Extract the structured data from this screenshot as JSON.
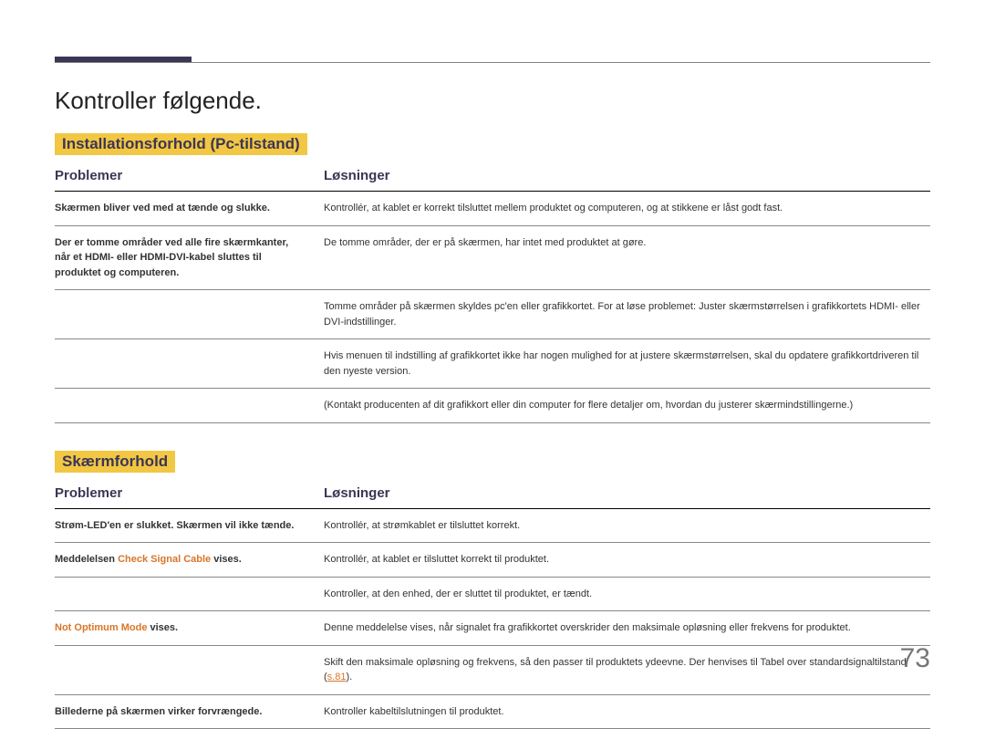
{
  "page": {
    "number": "73",
    "title": "Kontroller følgende."
  },
  "colors": {
    "topbar": "#3b3654",
    "highlight_bg": "#f2c744",
    "heading_text": "#3b3654",
    "orange": "#d97528"
  },
  "sections": [
    {
      "heading": "Installationsforhold (Pc-tilstand)",
      "columns": {
        "problem": "Problemer",
        "solution": "Løsninger"
      },
      "rows": [
        {
          "problem": "Skærmen bliver ved med at tænde og slukke.",
          "solutions": [
            "Kontrollér, at kablet er korrekt tilsluttet mellem produktet og computeren, og at stikkene er låst godt fast."
          ]
        },
        {
          "problem": "Der er tomme områder ved alle fire skærmkanter, når et HDMI- eller HDMI-DVI-kabel sluttes til produktet og computeren.",
          "solutions": [
            "De tomme områder, der er på skærmen, har intet med produktet at gøre.",
            "Tomme områder på skærmen skyldes pc'en eller grafikkortet. For at løse problemet: Juster skærmstørrelsen i grafikkortets HDMI- eller DVI-indstillinger.",
            "Hvis menuen til indstilling af grafikkortet ikke har nogen mulighed for at justere skærmstørrelsen, skal du opdatere grafikkortdriveren til den nyeste version.",
            "(Kontakt producenten af dit grafikkort eller din computer for flere detaljer om, hvordan du justerer skærmindstillingerne.)"
          ]
        }
      ]
    },
    {
      "heading": "Skærmforhold",
      "columns": {
        "problem": "Problemer",
        "solution": "Løsninger"
      },
      "rows": [
        {
          "problem": "Strøm-LED'en er slukket. Skærmen vil ikke tænde.",
          "solutions": [
            "Kontrollér, at strømkablet er tilsluttet korrekt."
          ]
        },
        {
          "problem_parts": [
            {
              "text": "Meddelelsen ",
              "hl": false
            },
            {
              "text": "Check Signal Cable",
              "hl": true
            },
            {
              "text": " vises.",
              "hl": false
            }
          ],
          "solutions": [
            "Kontrollér, at kablet er tilsluttet korrekt til produktet.",
            "Kontroller, at den enhed, der er sluttet til produktet, er tændt."
          ]
        },
        {
          "problem_parts": [
            {
              "text": "Not Optimum Mode",
              "hl": true
            },
            {
              "text": " vises.",
              "hl": false
            }
          ],
          "solutions": [
            "Denne meddelelse vises, når signalet fra grafikkortet overskrider den maksimale opløsning eller frekvens for produktet.",
            {
              "pre": "Skift den maksimale opløsning og frekvens, så den passer til produktets ydeevne. Der henvises til Tabel over standardsignaltilstand (",
              "link": "s.81",
              "post": ")."
            }
          ]
        },
        {
          "problem": "Billederne på skærmen virker forvrængede.",
          "solutions": [
            "Kontroller kabeltilslutningen til produktet."
          ]
        }
      ]
    }
  ]
}
